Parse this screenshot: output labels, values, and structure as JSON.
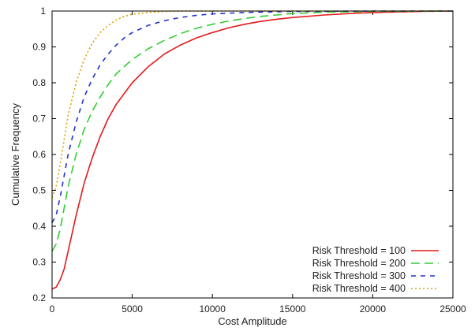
{
  "chart_data": {
    "type": "line",
    "xlabel": "Cost Amplitude",
    "ylabel": "Cumulative Frequency",
    "xlim": [
      0,
      25000
    ],
    "ylim": [
      0.2,
      1.0
    ],
    "x_ticks": [
      0,
      5000,
      10000,
      15000,
      20000,
      25000
    ],
    "y_ticks": [
      0.2,
      0.3,
      0.4,
      0.5,
      0.6,
      0.7,
      0.8,
      0.9,
      1.0
    ],
    "x_tick_labels": [
      "0",
      "5000",
      "10000",
      "15000",
      "20000",
      "25000"
    ],
    "y_tick_labels": [
      "0.2",
      "0.3",
      "0.4",
      "0.5",
      "0.6",
      "0.7",
      "0.8",
      "0.9",
      "1"
    ],
    "grid": false,
    "legend_position": "bottom-right",
    "series": [
      {
        "name": "Risk Threshold = 100",
        "color": "#e41a1c",
        "dash": "solid",
        "points": [
          [
            0,
            0.225
          ],
          [
            250,
            0.23
          ],
          [
            500,
            0.25
          ],
          [
            750,
            0.28
          ],
          [
            1000,
            0.33
          ],
          [
            1500,
            0.43
          ],
          [
            2000,
            0.52
          ],
          [
            2500,
            0.59
          ],
          [
            3000,
            0.65
          ],
          [
            3500,
            0.7
          ],
          [
            4000,
            0.74
          ],
          [
            4500,
            0.77
          ],
          [
            5000,
            0.8
          ],
          [
            6000,
            0.845
          ],
          [
            7000,
            0.88
          ],
          [
            8000,
            0.905
          ],
          [
            9000,
            0.925
          ],
          [
            10000,
            0.94
          ],
          [
            11000,
            0.953
          ],
          [
            12000,
            0.963
          ],
          [
            13000,
            0.971
          ],
          [
            14000,
            0.977
          ],
          [
            15000,
            0.982
          ],
          [
            17000,
            0.989
          ],
          [
            19000,
            0.994
          ],
          [
            21000,
            0.997
          ],
          [
            23000,
            0.999
          ],
          [
            25000,
            1.0
          ]
        ]
      },
      {
        "name": "Risk Threshold = 200",
        "color": "#33cc33",
        "dash": "long",
        "points": [
          [
            0,
            0.33
          ],
          [
            250,
            0.35
          ],
          [
            500,
            0.39
          ],
          [
            750,
            0.45
          ],
          [
            1000,
            0.51
          ],
          [
            1500,
            0.6
          ],
          [
            2000,
            0.67
          ],
          [
            2500,
            0.72
          ],
          [
            3000,
            0.76
          ],
          [
            3500,
            0.795
          ],
          [
            4000,
            0.825
          ],
          [
            5000,
            0.865
          ],
          [
            6000,
            0.895
          ],
          [
            7000,
            0.918
          ],
          [
            8000,
            0.937
          ],
          [
            9000,
            0.952
          ],
          [
            10000,
            0.963
          ],
          [
            11000,
            0.972
          ],
          [
            12000,
            0.979
          ],
          [
            13000,
            0.985
          ],
          [
            14000,
            0.989
          ],
          [
            15000,
            0.993
          ],
          [
            17000,
            0.997
          ],
          [
            20000,
            0.999
          ],
          [
            25000,
            1.0
          ]
        ]
      },
      {
        "name": "Risk Threshold = 300",
        "color": "#2233cc",
        "dash": "medium",
        "points": [
          [
            0,
            0.41
          ],
          [
            250,
            0.43
          ],
          [
            500,
            0.48
          ],
          [
            750,
            0.54
          ],
          [
            1000,
            0.6
          ],
          [
            1500,
            0.69
          ],
          [
            2000,
            0.76
          ],
          [
            2500,
            0.81
          ],
          [
            3000,
            0.85
          ],
          [
            3500,
            0.88
          ],
          [
            4000,
            0.905
          ],
          [
            4500,
            0.925
          ],
          [
            5000,
            0.94
          ],
          [
            6000,
            0.96
          ],
          [
            7000,
            0.973
          ],
          [
            8000,
            0.982
          ],
          [
            9000,
            0.988
          ],
          [
            10000,
            0.992
          ],
          [
            12000,
            0.996
          ],
          [
            15000,
            0.999
          ],
          [
            20000,
            1.0
          ],
          [
            25000,
            1.0
          ]
        ]
      },
      {
        "name": "Risk Threshold = 400",
        "color": "#e0a000",
        "dash": "dotted",
        "points": [
          [
            0,
            0.48
          ],
          [
            250,
            0.51
          ],
          [
            500,
            0.57
          ],
          [
            750,
            0.64
          ],
          [
            1000,
            0.71
          ],
          [
            1500,
            0.8
          ],
          [
            2000,
            0.865
          ],
          [
            2500,
            0.91
          ],
          [
            3000,
            0.94
          ],
          [
            3500,
            0.96
          ],
          [
            4000,
            0.975
          ],
          [
            4500,
            0.985
          ],
          [
            5000,
            0.991
          ],
          [
            6000,
            0.996
          ],
          [
            7000,
            0.999
          ],
          [
            8000,
            1.0
          ],
          [
            25000,
            1.0
          ]
        ]
      }
    ]
  }
}
